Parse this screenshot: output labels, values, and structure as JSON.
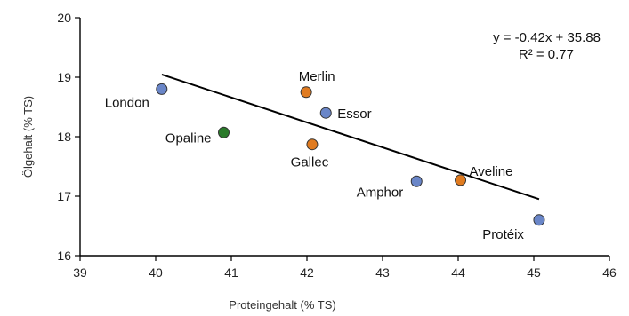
{
  "chart_data": {
    "type": "scatter",
    "xlabel": "Proteingehalt (% TS)",
    "ylabel": "Ölgehalt (% TS)",
    "xlim": [
      39,
      46
    ],
    "ylim": [
      16,
      20
    ],
    "x_ticks": [
      39,
      40,
      41,
      42,
      43,
      44,
      45,
      46
    ],
    "y_ticks": [
      16,
      17,
      18,
      19,
      20
    ],
    "grid": false,
    "points": [
      {
        "label": "London",
        "x": 40.08,
        "y": 18.8,
        "color": "#6a86c8",
        "label_anchor": "end",
        "label_dx": -14,
        "label_dy": 20
      },
      {
        "label": "Opaline",
        "x": 40.9,
        "y": 18.07,
        "color": "#2a7a2a",
        "label_anchor": "end",
        "label_dx": -14,
        "label_dy": 11
      },
      {
        "label": "Merlin",
        "x": 41.99,
        "y": 18.75,
        "color": "#e07b20",
        "label_anchor": "middle",
        "label_dx": 12,
        "label_dy": -13
      },
      {
        "label": "Essor",
        "x": 42.25,
        "y": 18.4,
        "color": "#6a86c8",
        "label_anchor": "start",
        "label_dx": 13,
        "label_dy": 6
      },
      {
        "label": "Gallec",
        "x": 42.07,
        "y": 17.87,
        "color": "#e07b20",
        "label_anchor": "middle",
        "label_dx": -3,
        "label_dy": 25
      },
      {
        "label": "Amphor",
        "x": 43.45,
        "y": 17.25,
        "color": "#6a86c8",
        "label_anchor": "end",
        "label_dx": -15,
        "label_dy": 17
      },
      {
        "label": "Aveline",
        "x": 44.03,
        "y": 17.27,
        "color": "#e07b20",
        "label_anchor": "start",
        "label_dx": 10,
        "label_dy": -5
      },
      {
        "label": "Protéix",
        "x": 45.07,
        "y": 16.6,
        "color": "#6a86c8",
        "label_anchor": "end",
        "label_dx": -17,
        "label_dy": 21
      }
    ],
    "trendline": {
      "equation": "y = -0.42x + 35.88",
      "r_squared": "R² = 0.77",
      "x_start": 40.08,
      "x_end": 45.07,
      "slope": -0.42,
      "intercept": 35.88
    }
  }
}
